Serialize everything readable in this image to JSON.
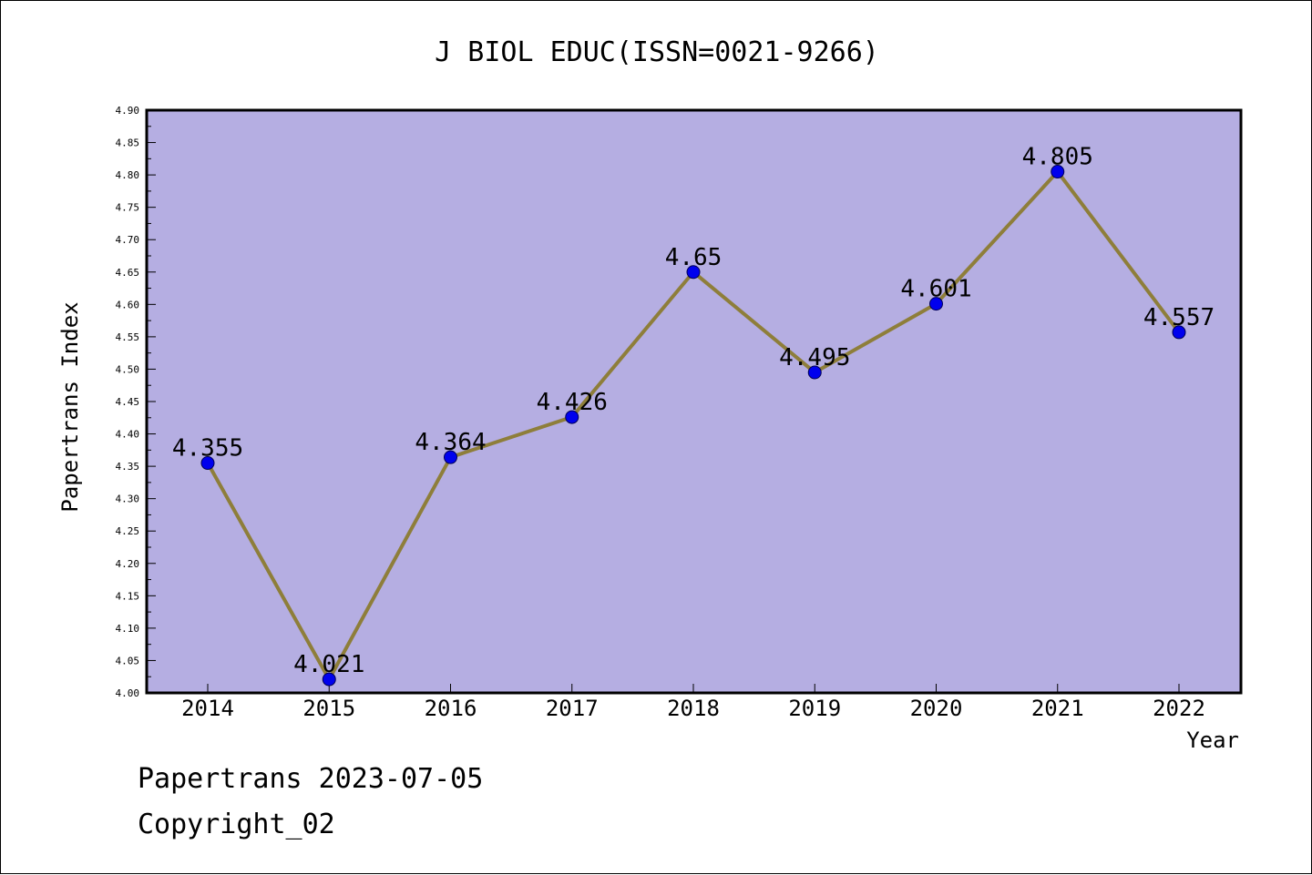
{
  "chart_data": {
    "type": "line",
    "title": "J BIOL EDUC(ISSN=0021-9266)",
    "xlabel": "Year",
    "ylabel": "Papertrans Index",
    "categories": [
      "2014",
      "2015",
      "2016",
      "2017",
      "2018",
      "2019",
      "2020",
      "2021",
      "2022"
    ],
    "series": [
      {
        "values": [
          4.355,
          4.021,
          4.364,
          4.426,
          4.65,
          4.495,
          4.601,
          4.805,
          4.557
        ],
        "labels": [
          "4.355",
          "4.021",
          "4.364",
          "4.426",
          "4.65",
          "4.495",
          "4.601",
          "4.805",
          "4.557"
        ]
      }
    ],
    "ylim": [
      4.0,
      4.9
    ],
    "yticks": [
      "4.00",
      "4.05",
      "4.10",
      "4.15",
      "4.20",
      "4.25",
      "4.30",
      "4.35",
      "4.40",
      "4.45",
      "4.50",
      "4.55",
      "4.60",
      "4.65",
      "4.70",
      "4.75",
      "4.80",
      "4.85",
      "4.90"
    ],
    "grid": false,
    "colors": {
      "plot_background": "#b5aee2",
      "line": "#8e7e3a",
      "marker": "#0000ee"
    }
  },
  "footer": {
    "line1": "Papertrans 2023-07-05",
    "line2": "Copyright_02"
  }
}
